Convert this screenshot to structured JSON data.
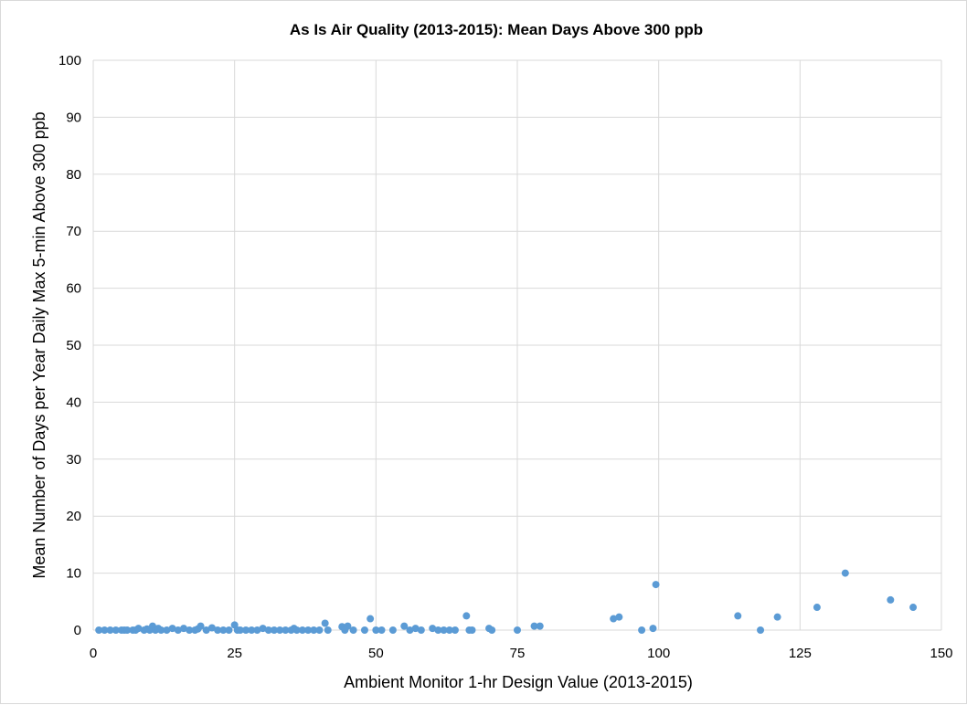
{
  "chart_data": {
    "type": "scatter",
    "title": "As Is Air Quality (2013-2015): Mean Days Above 300 ppb",
    "xlabel": "Ambient Monitor 1-hr Design Value (2013-2015)",
    "ylabel": "Mean Number of Days per Year Daily Max 5-min Above 300 ppb",
    "xlim": [
      0,
      150
    ],
    "ylim": [
      0,
      100
    ],
    "x_ticks": [
      "0",
      "25",
      "50",
      "75",
      "100",
      "125",
      "150"
    ],
    "y_ticks": [
      "0",
      "10",
      "20",
      "30",
      "40",
      "50",
      "60",
      "70",
      "80",
      "90",
      "100"
    ],
    "grid": true,
    "color": "#5b9bd5",
    "points": [
      [
        1,
        0
      ],
      [
        2,
        0
      ],
      [
        3,
        0
      ],
      [
        4,
        0
      ],
      [
        5,
        0
      ],
      [
        5.5,
        0
      ],
      [
        6,
        0
      ],
      [
        7,
        0
      ],
      [
        7.5,
        0
      ],
      [
        8,
        0.3
      ],
      [
        9,
        0
      ],
      [
        9.5,
        0.2
      ],
      [
        10,
        0
      ],
      [
        10.5,
        0.7
      ],
      [
        11,
        0
      ],
      [
        11.5,
        0.3
      ],
      [
        12,
        0
      ],
      [
        13,
        0
      ],
      [
        14,
        0.3
      ],
      [
        15,
        0
      ],
      [
        16,
        0.3
      ],
      [
        17,
        0
      ],
      [
        18,
        0
      ],
      [
        18.5,
        0.2
      ],
      [
        19,
        0.7
      ],
      [
        20,
        0
      ],
      [
        21,
        0.4
      ],
      [
        22,
        0
      ],
      [
        23,
        0
      ],
      [
        24,
        0
      ],
      [
        25,
        0.9
      ],
      [
        25.5,
        0
      ],
      [
        26,
        0
      ],
      [
        27,
        0
      ],
      [
        28,
        0
      ],
      [
        29,
        0
      ],
      [
        30,
        0.3
      ],
      [
        31,
        0
      ],
      [
        32,
        0
      ],
      [
        33,
        0
      ],
      [
        34,
        0
      ],
      [
        35,
        0
      ],
      [
        35.5,
        0.3
      ],
      [
        36,
        0
      ],
      [
        37,
        0
      ],
      [
        38,
        0
      ],
      [
        39,
        0
      ],
      [
        40,
        0
      ],
      [
        41,
        1.2
      ],
      [
        41.5,
        0
      ],
      [
        44,
        0.6
      ],
      [
        44.5,
        0
      ],
      [
        45,
        0.7
      ],
      [
        46,
        0
      ],
      [
        48,
        0
      ],
      [
        49,
        2
      ],
      [
        50,
        0
      ],
      [
        51,
        0
      ],
      [
        53,
        0
      ],
      [
        55,
        0.7
      ],
      [
        56,
        0
      ],
      [
        57,
        0.3
      ],
      [
        58,
        0
      ],
      [
        60,
        0.3
      ],
      [
        61,
        0
      ],
      [
        62,
        0
      ],
      [
        63,
        0
      ],
      [
        64,
        0
      ],
      [
        66,
        2.5
      ],
      [
        66.5,
        0
      ],
      [
        67,
        0
      ],
      [
        70,
        0.3
      ],
      [
        70.5,
        0
      ],
      [
        75,
        0
      ],
      [
        78,
        0.7
      ],
      [
        79,
        0.7
      ],
      [
        92,
        2
      ],
      [
        93,
        2.3
      ],
      [
        97,
        0
      ],
      [
        99,
        0.3
      ],
      [
        99.5,
        8
      ],
      [
        114,
        2.5
      ],
      [
        118,
        0
      ],
      [
        121,
        2.3
      ],
      [
        128,
        4
      ],
      [
        133,
        10
      ],
      [
        141,
        5.3
      ],
      [
        145,
        4
      ]
    ]
  }
}
